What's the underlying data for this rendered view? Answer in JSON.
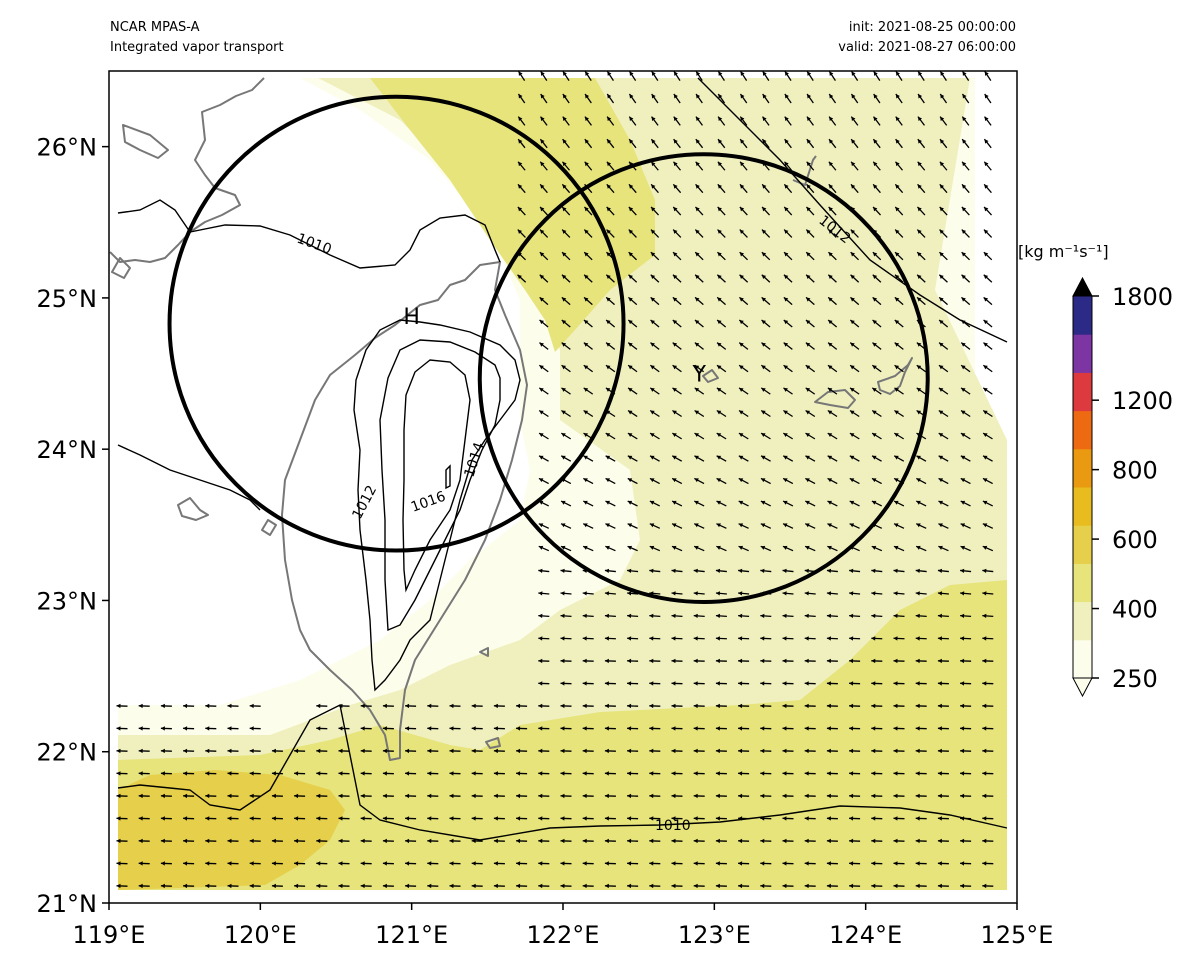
{
  "header": {
    "left_line1": "NCAR MPAS-A",
    "left_line2": "Integrated vapor transport",
    "right_line1": "init: 2021-08-25 00:00:00",
    "right_line2": "valid: 2021-08-27 06:00:00"
  },
  "map": {
    "lon_range": [
      119,
      125
    ],
    "lat_range": [
      21,
      26.5
    ],
    "x_ticks": [
      {
        "lon": 119,
        "label": "119°E"
      },
      {
        "lon": 120,
        "label": "120°E"
      },
      {
        "lon": 121,
        "label": "121°E"
      },
      {
        "lon": 122,
        "label": "122°E"
      },
      {
        "lon": 123,
        "label": "123°E"
      },
      {
        "lon": 124,
        "label": "124°E"
      },
      {
        "lon": 125,
        "label": "125°E"
      }
    ],
    "y_ticks": [
      {
        "lat": 21,
        "label": "21°N"
      },
      {
        "lat": 22,
        "label": "22°N"
      },
      {
        "lat": 23,
        "label": "23°N"
      },
      {
        "lat": 24,
        "label": "24°N"
      },
      {
        "lat": 25,
        "label": "25°N"
      },
      {
        "lat": 26,
        "label": "26°N"
      }
    ],
    "markers": [
      {
        "label": "H",
        "lon": 121.0,
        "lat": 24.88
      },
      {
        "label": "Y",
        "lon": 122.9,
        "lat": 24.5
      }
    ],
    "circles": [
      {
        "center_lon": 120.9,
        "center_lat": 24.83,
        "radius_deg": 1.5
      },
      {
        "center_lon": 122.93,
        "center_lat": 24.47,
        "radius_deg": 1.48
      }
    ],
    "pressure_contour_labels": [
      "1010",
      "1012",
      "1014",
      "1016",
      "1012",
      "1010"
    ]
  },
  "colorbar": {
    "units": "[kg m⁻¹s⁻¹]",
    "tick_labels": [
      "250",
      "400",
      "600",
      "800",
      "1200",
      "1800"
    ],
    "levels": [
      250,
      300,
      400,
      500,
      600,
      700,
      800,
      1000,
      1200,
      1400,
      1600,
      1800
    ],
    "colors": [
      "#fdfdec",
      "#f0f0bf",
      "#e6e47b",
      "#e6cf4a",
      "#e8bc1e",
      "#e99a11",
      "#ee6a12",
      "#dc3a3e",
      "#7c35a3",
      "#2b2a86"
    ],
    "extend_max_color": "#000000"
  },
  "colors": {
    "ivt_250": "#fdfdec",
    "ivt_300": "#f0f0bf",
    "ivt_400": "#e6e47b",
    "ivt_500": "#e6cf4a",
    "coastline": "#777777",
    "contour": "#000000"
  }
}
